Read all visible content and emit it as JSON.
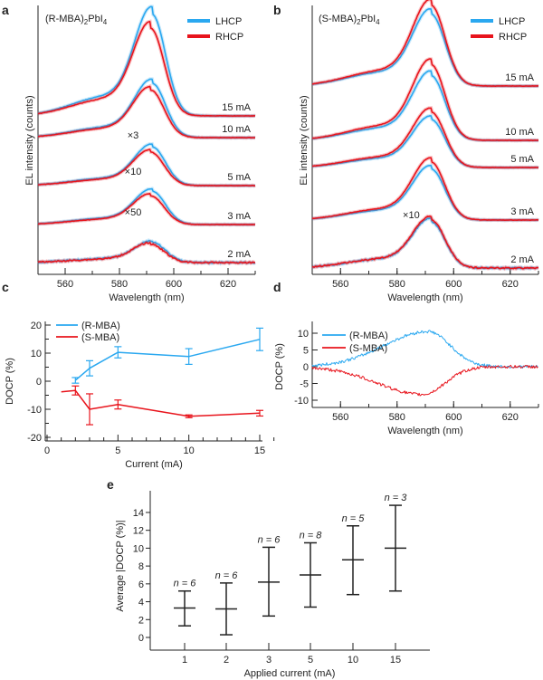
{
  "colors": {
    "blue": "#2aa8f0",
    "red": "#e8141c",
    "axis": "#222222"
  },
  "chart_data": [
    {
      "panel": "a",
      "type": "line",
      "title": "(R-MBA)2PbI4",
      "title_main": "(R-MBA)",
      "title_sub": "2",
      "title_mid": "PbI",
      "title_sub2": "4",
      "xlabel": "Wavelength (nm)",
      "ylabel": "EL intensity (counts)",
      "xlim": [
        550,
        630
      ],
      "xticks": [
        560,
        580,
        600,
        620
      ],
      "legend": [
        "LHCP",
        "RHCP"
      ],
      "peak_nm": 592,
      "traces": [
        {
          "current": "15 mA",
          "multiplier": "",
          "lhcp_peak": 1.0,
          "rhcp_peak": 0.86
        },
        {
          "current": "10 mA",
          "multiplier": "",
          "lhcp_peak": 0.62,
          "rhcp_peak": 0.54
        },
        {
          "current": "5 mA",
          "multiplier": "×3",
          "lhcp_peak": 0.44,
          "rhcp_peak": 0.38
        },
        {
          "current": "3 mA",
          "multiplier": "×10",
          "lhcp_peak": 0.36,
          "rhcp_peak": 0.31
        },
        {
          "current": "2 mA",
          "multiplier": "×50",
          "lhcp_peak": 0.23,
          "rhcp_peak": 0.21
        }
      ]
    },
    {
      "panel": "b",
      "type": "line",
      "title_main": "(S-MBA)",
      "title_sub": "2",
      "title_mid": "PbI",
      "title_sub2": "4",
      "xlabel": "Wavelength (nm)",
      "ylabel": "EL intensity (counts)",
      "xlim": [
        550,
        630
      ],
      "xticks": [
        560,
        580,
        600,
        620
      ],
      "legend": [
        "LHCP",
        "RHCP"
      ],
      "peak_nm": 592,
      "traces": [
        {
          "current": "15 mA",
          "multiplier": "",
          "lhcp_peak": 0.82,
          "rhcp_peak": 0.92
        },
        {
          "current": "10 mA",
          "multiplier": "",
          "lhcp_peak": 0.7,
          "rhcp_peak": 0.82
        },
        {
          "current": "5 mA",
          "multiplier": "",
          "lhcp_peak": 0.52,
          "rhcp_peak": 0.6
        },
        {
          "current": "3 mA",
          "multiplier": "",
          "lhcp_peak": 0.58,
          "rhcp_peak": 0.66
        },
        {
          "current": "2 mA",
          "multiplier": "×10",
          "lhcp_peak": 0.5,
          "rhcp_peak": 0.52
        }
      ]
    },
    {
      "panel": "c",
      "type": "line",
      "xlabel": "Current (mA)",
      "ylabel": "DOCP (%)",
      "xlim": [
        0,
        16
      ],
      "ylim": [
        -20,
        20
      ],
      "xticks": [
        0,
        5,
        10,
        15
      ],
      "yticks": [
        -20,
        -10,
        0,
        10,
        20
      ],
      "series": [
        {
          "name": "(R-MBA)",
          "x": [
            2,
            3,
            5,
            10,
            15
          ],
          "y": [
            0.3,
            4.6,
            10.3,
            8.8,
            14.9
          ],
          "err": [
            1,
            2.7,
            2,
            2.8,
            4
          ]
        },
        {
          "name": "(S-MBA)",
          "x": [
            1,
            2,
            3,
            5,
            10,
            15
          ],
          "y": [
            -3.8,
            -3.3,
            -10,
            -8.3,
            -12.5,
            -11.4
          ],
          "err": [
            0,
            1.6,
            5.5,
            1.6,
            0.5,
            1
          ]
        }
      ]
    },
    {
      "panel": "d",
      "type": "line",
      "xlabel": "Wavelength (nm)",
      "ylabel": "DOCP (%)",
      "xlim": [
        550,
        630
      ],
      "ylim": [
        -11,
        11
      ],
      "xticks": [
        560,
        580,
        600,
        620
      ],
      "yticks": [
        -10,
        -5,
        0,
        5,
        10
      ],
      "series": [
        {
          "name": "(R-MBA)",
          "peak_nm": 591,
          "peak_value": 10.5
        },
        {
          "name": "(S-MBA)",
          "peak_nm": 589,
          "peak_value": -8.3
        }
      ]
    },
    {
      "panel": "e",
      "type": "scatter",
      "xlabel": "Applied current (mA)",
      "ylabel": "Average |DOCP (%)|",
      "ylim": [
        -1,
        16
      ],
      "yticks": [
        0,
        2,
        4,
        6,
        8,
        10,
        12,
        14
      ],
      "categories": [
        "1",
        "2",
        "3",
        "5",
        "10",
        "15"
      ],
      "mean": [
        3.3,
        3.2,
        6.2,
        7.0,
        8.7,
        10.0
      ],
      "low": [
        1.3,
        0.3,
        2.4,
        3.4,
        4.8,
        5.2
      ],
      "high": [
        5.2,
        6.1,
        10.1,
        10.6,
        12.5,
        14.8
      ],
      "n_labels": [
        "n = 6",
        "n = 6",
        "n = 6",
        "n = 8",
        "n = 5",
        "n = 3"
      ]
    }
  ],
  "panel_labels": [
    "a",
    "b",
    "c",
    "d",
    "e"
  ]
}
